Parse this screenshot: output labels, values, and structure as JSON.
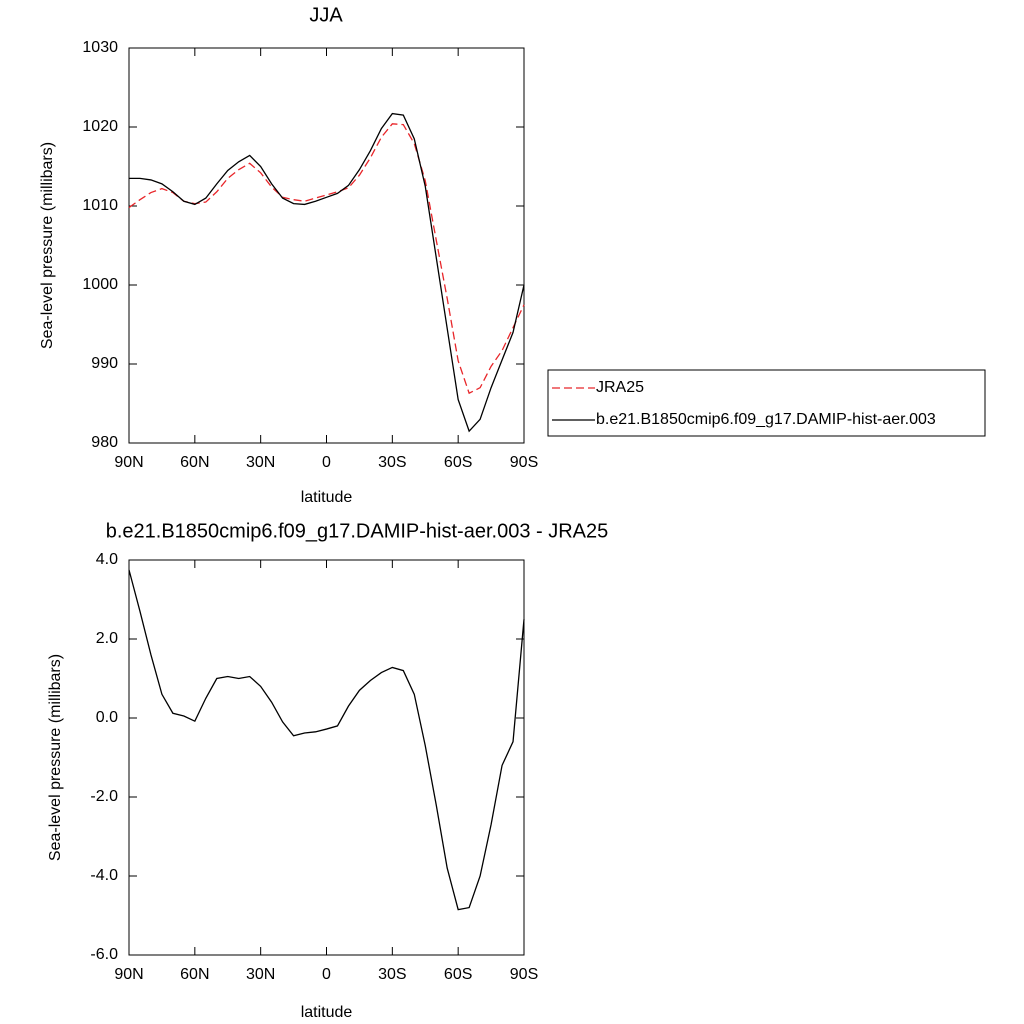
{
  "chart_data": [
    {
      "type": "line",
      "title": "JJA",
      "xlabel": "latitude",
      "ylabel": "Sea-level pressure (millibars)",
      "x": [
        90,
        85,
        80,
        75,
        70,
        65,
        60,
        55,
        50,
        45,
        40,
        35,
        30,
        25,
        20,
        15,
        10,
        5,
        0,
        -5,
        -10,
        -15,
        -20,
        -25,
        -30,
        -35,
        -40,
        -45,
        -50,
        -55,
        -60,
        -65,
        -70,
        -75,
        -80,
        -85,
        -90
      ],
      "series": [
        {
          "name": "JRA25",
          "color": "#e8262a",
          "dash": true,
          "values": [
            1009.8,
            1010.8,
            1011.7,
            1012.2,
            1011.7,
            1010.6,
            1010.3,
            1010.5,
            1011.8,
            1013.5,
            1014.6,
            1015.4,
            1014.2,
            1012.4,
            1011.1,
            1010.8,
            1010.6,
            1011.0,
            1011.4,
            1011.8,
            1012.3,
            1013.9,
            1016.1,
            1018.7,
            1020.4,
            1020.3,
            1017.9,
            1013.2,
            1005.7,
            998.3,
            990.4,
            986.3,
            987.0,
            989.7,
            991.7,
            994.6,
            997.5
          ]
        },
        {
          "name": "b.e21.B1850cmip6.f09_g17.DAMIP-hist-aer.003",
          "color": "#000000",
          "dash": false,
          "values": [
            1013.5,
            1013.5,
            1013.3,
            1012.8,
            1011.8,
            1010.6,
            1010.2,
            1011.0,
            1012.8,
            1014.5,
            1015.6,
            1016.4,
            1015.0,
            1012.8,
            1011.0,
            1010.3,
            1010.2,
            1010.6,
            1011.1,
            1011.6,
            1012.6,
            1014.6,
            1017.0,
            1019.8,
            1021.7,
            1021.5,
            1018.5,
            1012.5,
            1003.5,
            994.5,
            985.5,
            981.5,
            983.0,
            987.0,
            990.5,
            994.0,
            1000.0
          ]
        }
      ],
      "xlim": [
        90,
        -90
      ],
      "xticks": [
        {
          "value": 90,
          "label": "90N"
        },
        {
          "value": 60,
          "label": "60N"
        },
        {
          "value": 30,
          "label": "30N"
        },
        0,
        {
          "value": -30,
          "label": "30S"
        },
        {
          "value": -60,
          "label": "60S"
        },
        {
          "value": -90,
          "label": "90S"
        }
      ],
      "ylim": [
        980,
        1030
      ],
      "yticks": [
        980,
        990,
        1000,
        1010,
        1020,
        1030
      ],
      "legend": "right"
    },
    {
      "type": "line",
      "title": "b.e21.B1850cmip6.f09_g17.DAMIP-hist-aer.003 - JRA25",
      "xlabel": "latitude",
      "ylabel": "Sea-level pressure (millibars)",
      "x": [
        90,
        85,
        80,
        75,
        70,
        65,
        60,
        55,
        50,
        45,
        40,
        35,
        30,
        25,
        20,
        15,
        10,
        5,
        0,
        -5,
        -10,
        -15,
        -20,
        -25,
        -30,
        -35,
        -40,
        -45,
        -50,
        -55,
        -60,
        -65,
        -70,
        -75,
        -80,
        -85,
        -90
      ],
      "values": [
        3.75,
        2.7,
        1.6,
        0.6,
        0.12,
        0.05,
        -0.08,
        0.5,
        1.0,
        1.05,
        1.0,
        1.05,
        0.8,
        0.4,
        -0.1,
        -0.45,
        -0.38,
        -0.35,
        -0.28,
        -0.2,
        0.3,
        0.7,
        0.95,
        1.15,
        1.28,
        1.2,
        0.6,
        -0.7,
        -2.2,
        -3.8,
        -4.85,
        -4.8,
        -4.0,
        -2.7,
        -1.2,
        -0.6,
        2.5
      ],
      "color": "#000000",
      "xlim": [
        90,
        -90
      ],
      "xticks": [
        {
          "value": 90,
          "label": "90N"
        },
        {
          "value": 60,
          "label": "60N"
        },
        {
          "value": 30,
          "label": "30N"
        },
        0,
        {
          "value": -30,
          "label": "30S"
        },
        {
          "value": -60,
          "label": "60S"
        },
        {
          "value": -90,
          "label": "90S"
        }
      ],
      "ylim": [
        -6,
        4
      ],
      "yticks": [
        {
          "value": -6,
          "label": "-6.0"
        },
        {
          "value": -4,
          "label": "-4.0"
        },
        {
          "value": -2,
          "label": "-2.0"
        },
        {
          "value": 0,
          "label": "0.0"
        },
        {
          "value": 2,
          "label": "2.0"
        },
        {
          "value": 4,
          "label": "4.0"
        }
      ]
    }
  ]
}
